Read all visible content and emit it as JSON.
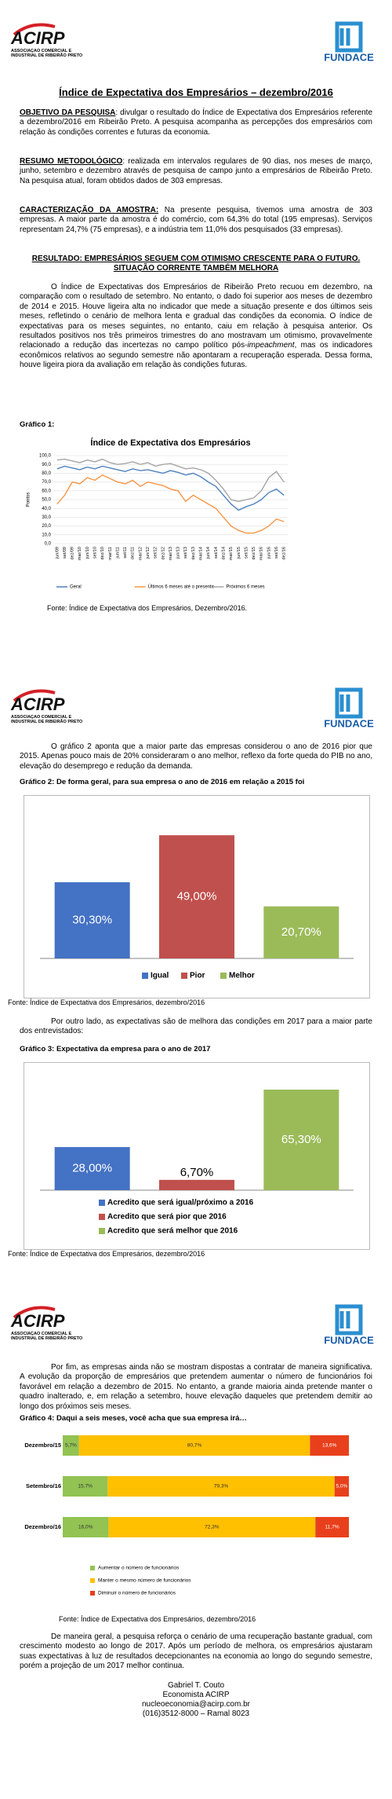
{
  "header": {
    "acirp": "ACIRP",
    "acirp_sub": "ASSOCIAÇÃO COMERCIAL E INDUSTRIAL DE RIBEIRÃO PRETO",
    "fundace": "FUNDACE"
  },
  "title": "Índice de Expectativa dos Empresários – dezembro/2016",
  "page1": {
    "objetivo": {
      "label": "OBJETIVO DA PESQUISA",
      "text": ": divulgar o resultado do Índice de Expectativa dos Empresários referente a dezembro/2016 em Ribeirão Preto. A pesquisa acompanha as percepções dos empresários com relação às condições correntes e futuras da economia."
    },
    "resumo": {
      "label": "RESUMO METODOLÓGICO",
      "text": ": realizada em intervalos regulares de 90 dias, nos meses de março, junho, setembro e dezembro através de pesquisa de campo junto a empresários de Ribeirão Preto. Na pesquisa atual, foram obtidos dados de 303 empresas."
    },
    "amostra": {
      "label": "CARACTERIZAÇÃO DA AMOSTRA:",
      "text": " Na presente pesquisa, tivemos uma amostra de 303 empresas. A maior parte da amostra é do comércio, com 64,3% do total (195 empresas). Serviços representam 24,7% (75 empresas), e a indústria tem 11,0% dos pesquisados (33 empresas)."
    },
    "resultado": "RESULTADO: EMPRESÁRIOS SEGUEM COM OTIMISMO CRESCENTE PARA O FUTURO. SITUAÇÃO CORRENTE TAMBÉM MELHORA",
    "body": [
      "O Índice de Expectativas dos Empresários de Ribeirão Preto recuou em dezembro, na comparação com o resultado de setembro. No entanto, o dado foi superior aos meses de dezembro de 2014 e 2015. Houve ligeira alta no indicador que mede a situação presente e dos últimos seis meses, refletindo o cenário de melhora lenta e gradual das condições da economia. O índice de expectativas para os meses seguintes, no entanto, caiu em relação à pesquisa anterior. Os resultados positivos nos três primeiros trimestres do ano mostravam um otimismo, provavelmente relacionado a redução das incertezas no campo político pós-",
      "impeachment",
      ", mas os indicadores econômicos relativos ao segundo semestre não apontaram a recuperação esperada. Dessa forma, houve ligeira piora da avaliação em relação às condições futuras."
    ],
    "grafico": "Gráfico 1:",
    "fonte": "Fonte: Índice de Expectativa dos Empresários, Dezembro/2016."
  },
  "page2": {
    "p1": "O gráfico 2 aponta que a maior parte das empresas considerou o ano de 2016 pior que 2015. Apenas pouco mais de 20% consideraram o ano melhor, reflexo da forte queda do PIB no ano, elevação do desemprego e redução da demanda.",
    "grafico2": "Gráfico 2: De forma geral, para sua empresa o ano de 2016 em relação a 2015 foi",
    "fonte2": "Fonte: Índice de Expectativa dos Empresários, dezembro/2016",
    "p2": "Por outro lado, as expectativas são de melhora das condições em 2017 para a maior parte dos entrevistados:",
    "grafico3": "Gráfico 3: Expectativa da empresa para o ano de 2017",
    "fonte3": "Fonte: Índice de Expectativa dos Empresários, dezembro/2016"
  },
  "page3": {
    "p1": "Por fim, as empresas ainda não se mostram dispostas a contratar de maneira significativa. A evolução da proporção de empresários que pretendem aumentar o número de funcionários foi favorável em relação a dezembro de 2015. No entanto, a grande maioria ainda pretende manter o quadro inalterado, e, em relação a setembro, houve elevação daqueles que pretendem demitir ao longo dos próximos seis meses.",
    "grafico4": "Gráfico 4: Daqui a seis meses, você acha que sua empresa irá…",
    "fonte4": "Fonte: Índice de Expectativa dos Empresários, dezembro/2016",
    "p2": "De maneira geral, a pesquisa reforça o cenário de uma recuperação bastante gradual, com crescimento modesto ao longo de 2017. Após um período de melhora, os empresários ajustaram suas expectativas à luz de resultados decepcionantes na economia ao longo do segundo semestre, porém a projeção de um 2017 melhor continua.",
    "signature": [
      "Gabriel T. Couto",
      "Economista ACIRP",
      "nucleoeconomia@acirp.com.br",
      "(016)3512-8000 – Ramal 8023"
    ]
  },
  "chart_data": [
    {
      "type": "line",
      "title": "Índice de Expectativa dos Empresários",
      "y_label": "Pontos",
      "categories": [
        "jun/09",
        "set/09",
        "dez/09",
        "mar/10",
        "jun/10",
        "set/10",
        "dez/10",
        "mar/11",
        "jun/11",
        "set/11",
        "dez/11",
        "mar/12",
        "jun/12",
        "set/12",
        "dez/12",
        "mar/13",
        "jun/13",
        "set/13",
        "dez/13",
        "mar/14",
        "jun/14",
        "set/14",
        "dez/14",
        "mar/15",
        "jun/15",
        "set/15",
        "dez/15",
        "mar/16",
        "jun/16",
        "set/16",
        "dez/16"
      ],
      "series": [
        {
          "name": "Geral",
          "color": "#4f81bd",
          "values": [
            85,
            88,
            86,
            84,
            87,
            85,
            88,
            86,
            84,
            82,
            85,
            83,
            84,
            82,
            80,
            83,
            81,
            78,
            80,
            76,
            70,
            65,
            55,
            45,
            38,
            42,
            45,
            50,
            58,
            62,
            55
          ]
        },
        {
          "name": "Últimos 6 meses até o presente",
          "color": "#f79646",
          "values": [
            45,
            55,
            70,
            68,
            75,
            72,
            78,
            74,
            70,
            68,
            72,
            65,
            70,
            68,
            66,
            62,
            60,
            48,
            55,
            50,
            45,
            40,
            30,
            20,
            15,
            12,
            12,
            15,
            20,
            28,
            25
          ]
        },
        {
          "name": "Próximos 6 meses",
          "color": "#a5a5a5",
          "values": [
            95,
            96,
            94,
            92,
            95,
            93,
            96,
            92,
            90,
            91,
            93,
            90,
            92,
            88,
            90,
            91,
            88,
            85,
            86,
            84,
            80,
            72,
            62,
            50,
            48,
            50,
            52,
            60,
            75,
            82,
            70
          ]
        }
      ],
      "ylim": [
        0,
        100
      ],
      "yticks": [
        {
          "value": 0,
          "label": "0,0"
        },
        {
          "value": 10,
          "label": "10,0"
        },
        {
          "value": 20,
          "label": "20,0"
        },
        {
          "value": 30,
          "label": "30,0"
        },
        {
          "value": 40,
          "label": "40,0"
        },
        {
          "value": 50,
          "label": "50,0"
        },
        {
          "value": 60,
          "label": "60,0"
        },
        {
          "value": 70,
          "label": "70,0"
        },
        {
          "value": 80,
          "label": "80,0"
        },
        {
          "value": 90,
          "label": "90,0"
        },
        {
          "value": 100,
          "label": "100,0"
        }
      ],
      "grid": true,
      "legend": "bottom"
    },
    {
      "type": "bar",
      "categories": [
        "Igual",
        "Pior",
        "Melhor"
      ],
      "values": [
        30.3,
        49,
        20.7
      ],
      "value_labels": [
        "30,30%",
        "49,00%",
        "20,70%"
      ],
      "colors": [
        "#4472c4",
        "#c0504d",
        "#9bbb59"
      ],
      "ylim": [
        0,
        60
      ],
      "legend": "bottom"
    },
    {
      "type": "bar",
      "categories": [
        "Acredito que será igual/próximo a 2016",
        "Acredito que será pior que 2016",
        "Acredito que será melhor que 2016"
      ],
      "values": [
        28,
        6.7,
        65.3
      ],
      "value_labels": [
        "28,00%",
        "6,70%",
        "65,30%"
      ],
      "colors": [
        "#4472c4",
        "#c0504d",
        "#9bbb59"
      ],
      "ylim": [
        0,
        75
      ],
      "legend": "bottom"
    },
    {
      "type": "hbar",
      "categories": [
        "Dezembro/15",
        "Setembro/16",
        "Dezembro/16"
      ],
      "series": [
        {
          "name": "Aumentar o número de funcionários",
          "color": "#92c353",
          "values": [
            5.7,
            15.7,
            16.0
          ],
          "value_labels": [
            "5,7%",
            "15,7%",
            "16,0%"
          ]
        },
        {
          "name": "Manter o mesmo número de funcionários",
          "color": "#ffc000",
          "values": [
            80.7,
            79.3,
            72.3
          ],
          "value_labels": [
            "80,7%",
            "79,3%",
            "72,3%"
          ]
        },
        {
          "name": "Diminuir o número de funcionários",
          "color": "#e8401c",
          "values": [
            13.6,
            5.0,
            11.7
          ],
          "value_labels": [
            "13,6%",
            "5,0%",
            "11,7%"
          ]
        }
      ],
      "xlim": [
        0,
        100
      ],
      "legend": "bottom"
    }
  ]
}
